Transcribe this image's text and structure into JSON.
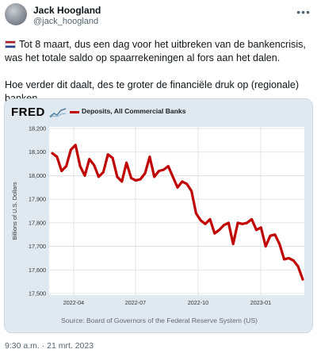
{
  "tweet": {
    "author_name": "Jack Hoogland",
    "author_handle": "@jack_hoogland",
    "paragraph_1": "Tot 8 maart, dus een dag voor het uitbreken van de bankencrisis, was het totale saldo op spaarrekeningen al fors aan het dalen.",
    "paragraph_2": "Hoe verder dit daalt, des te groter de financiële druk op (regionale) banken.",
    "timestamp": "9:30 a.m. · 21 mrt. 2023",
    "more_icon": "more-horizontal-icon",
    "flag_icon": "netherlands-flag-icon"
  },
  "fred": {
    "logo_text": "FRED",
    "legend_label": "Deposits, All Commercial Banks",
    "source": "Source: Board of Governors of the Federal Reserve System (US)",
    "colors": {
      "line": "#c00000",
      "background": "#e1e9f0",
      "plot": "#ffffff"
    }
  },
  "chart_data": {
    "type": "line",
    "ylabel": "Billions of U.S. Dollars",
    "ylim": [
      17500,
      18200
    ],
    "yticks": [
      "17,500",
      "17,600",
      "17,700",
      "17,800",
      "17,900",
      "18,000",
      "18,100",
      "18,200"
    ],
    "xticks": [
      "2022-04",
      "2022-07",
      "2022-10",
      "2023-01"
    ],
    "grid": true,
    "series": [
      {
        "name": "Deposits, All Commercial Banks",
        "values": [
          18095,
          18080,
          18020,
          18040,
          18110,
          18130,
          18040,
          18000,
          18070,
          18045,
          17995,
          18015,
          18090,
          18075,
          17995,
          17975,
          18055,
          17990,
          17980,
          17985,
          18010,
          18080,
          17995,
          18020,
          18025,
          18040,
          17995,
          17950,
          17975,
          17965,
          17935,
          17840,
          17810,
          17795,
          17815,
          17755,
          17770,
          17790,
          17800,
          17710,
          17800,
          17795,
          17800,
          17815,
          17770,
          17780,
          17700,
          17745,
          17750,
          17710,
          17645,
          17650,
          17640,
          17615,
          17560
        ]
      }
    ]
  }
}
